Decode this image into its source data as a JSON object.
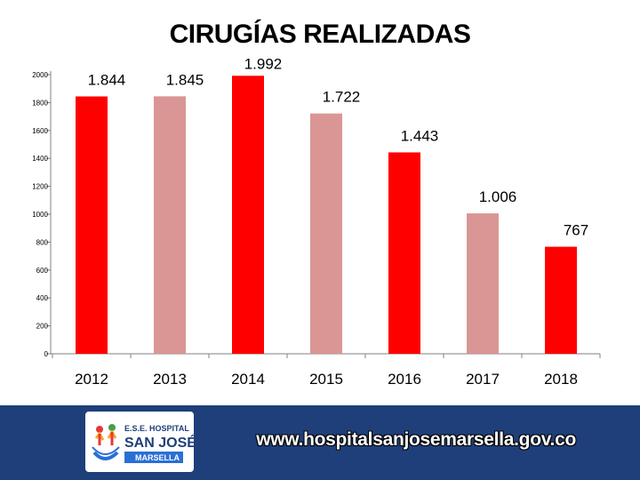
{
  "chart_data": {
    "type": "bar",
    "title": "CIRUGÍAS REALIZADAS",
    "categories": [
      "2012",
      "2013",
      "2014",
      "2015",
      "2016",
      "2017",
      "2018"
    ],
    "values": [
      1844,
      1845,
      1992,
      1722,
      1443,
      1006,
      767
    ],
    "value_labels": [
      "1.844",
      "1.845",
      "1.992",
      "1.722",
      "1.443",
      "1.006",
      "767"
    ],
    "bar_colors": [
      "#ff0000",
      "#d99694",
      "#ff0000",
      "#d99694",
      "#ff0000",
      "#d99694",
      "#ff0000"
    ],
    "ylim": [
      0,
      2000
    ],
    "yticks": [
      0,
      200,
      400,
      600,
      800,
      1000,
      1200,
      1400,
      1600,
      1800,
      2000
    ],
    "grid": false,
    "legend": false
  },
  "footer": {
    "url": "www.hospitalsanjosemarsella.gov.co",
    "logo": {
      "line1": "E.S.E. HOSPITAL",
      "line2": "SAN JOSÉ",
      "line3": "MARSELLA"
    },
    "background": "#1f3f7a"
  }
}
